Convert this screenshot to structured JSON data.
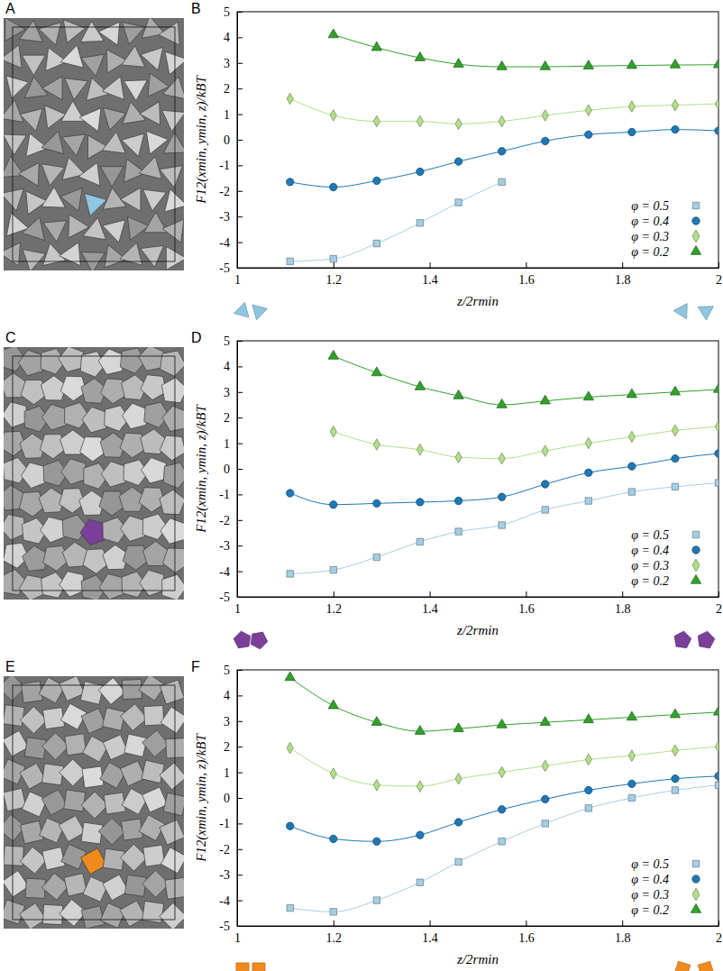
{
  "snapshots": [
    {
      "label": "A"
    },
    {
      "label": "C"
    },
    {
      "label": "E"
    }
  ],
  "chart_data": [
    {
      "type": "line",
      "title": "B",
      "x_label": "z/2rmin",
      "y_label": "F12(xmin, ymin, z)/kBT",
      "x": [
        1.11,
        1.2,
        1.29,
        1.38,
        1.46,
        1.55,
        1.64,
        1.73,
        1.82,
        1.91,
        2.0
      ],
      "xlim": [
        1,
        2
      ],
      "xticks": [
        1,
        1.2,
        1.4,
        1.6,
        1.8,
        2
      ],
      "ylim": [
        -5,
        5
      ],
      "yticks": [
        -5,
        -4,
        -3,
        -2,
        -1,
        0,
        1,
        2,
        3,
        4,
        5
      ],
      "legend": "lower right",
      "series": [
        {
          "name": "φ = 0.5",
          "color": "#a6cee3",
          "marker": "square",
          "values": [
            -4.75,
            -4.65,
            -4.05,
            -3.25,
            -2.45,
            -1.65,
            null,
            null,
            null,
            null,
            null
          ]
        },
        {
          "name": "φ = 0.4",
          "color": "#1f78b4",
          "marker": "circle",
          "values": [
            -1.65,
            -1.85,
            -1.6,
            -1.25,
            -0.85,
            -0.45,
            -0.05,
            0.2,
            0.3,
            0.4,
            0.35
          ]
        },
        {
          "name": "φ = 0.3",
          "color": "#b2df8a",
          "marker": "diamond",
          "values": [
            1.6,
            0.95,
            0.72,
            0.72,
            0.62,
            0.72,
            0.95,
            1.15,
            1.3,
            1.35,
            1.4
          ]
        },
        {
          "name": "φ = 0.2",
          "color": "#33a02c",
          "marker": "triangle",
          "values": [
            null,
            4.1,
            3.6,
            3.2,
            2.95,
            2.85,
            2.85,
            2.88,
            2.9,
            2.92,
            2.93
          ]
        }
      ]
    },
    {
      "type": "line",
      "title": "D",
      "x_label": "z/2rmin",
      "y_label": "F12(xmin, ymin, z)/kBT",
      "x": [
        1.11,
        1.2,
        1.29,
        1.38,
        1.46,
        1.55,
        1.64,
        1.73,
        1.82,
        1.91,
        2.0
      ],
      "xlim": [
        1,
        2
      ],
      "xticks": [
        1,
        1.2,
        1.4,
        1.6,
        1.8,
        2
      ],
      "ylim": [
        -5,
        5
      ],
      "yticks": [
        -5,
        -4,
        -3,
        -2,
        -1,
        0,
        1,
        2,
        3,
        4,
        5
      ],
      "legend": "lower right",
      "series": [
        {
          "name": "φ = 0.5",
          "color": "#a6cee3",
          "marker": "square",
          "values": [
            -4.1,
            -3.95,
            -3.45,
            -2.85,
            -2.45,
            -2.2,
            -1.6,
            -1.25,
            -0.9,
            -0.7,
            -0.55
          ]
        },
        {
          "name": "φ = 0.4",
          "color": "#1f78b4",
          "marker": "circle",
          "values": [
            -0.95,
            -1.4,
            -1.35,
            -1.3,
            -1.25,
            -1.1,
            -0.6,
            -0.15,
            0.1,
            0.4,
            0.6
          ]
        },
        {
          "name": "φ = 0.3",
          "color": "#b2df8a",
          "marker": "diamond",
          "values": [
            null,
            1.45,
            0.95,
            0.75,
            0.45,
            0.4,
            0.7,
            1.0,
            1.25,
            1.5,
            1.65
          ]
        },
        {
          "name": "φ = 0.2",
          "color": "#33a02c",
          "marker": "triangle",
          "values": [
            null,
            4.4,
            3.75,
            3.2,
            2.85,
            2.5,
            2.65,
            2.8,
            2.9,
            3.0,
            3.1
          ]
        }
      ]
    },
    {
      "type": "line",
      "title": "F",
      "x_label": "z/2rmin",
      "y_label": "F12(xmin, ymin, z)/kBT",
      "x": [
        1.11,
        1.2,
        1.29,
        1.38,
        1.46,
        1.55,
        1.64,
        1.73,
        1.82,
        1.91,
        2.0
      ],
      "xlim": [
        1,
        2
      ],
      "xticks": [
        1,
        1.2,
        1.4,
        1.6,
        1.8,
        2
      ],
      "ylim": [
        -5,
        5
      ],
      "yticks": [
        -5,
        -4,
        -3,
        -2,
        -1,
        0,
        1,
        2,
        3,
        4,
        5
      ],
      "legend": "lower right",
      "series": [
        {
          "name": "φ = 0.5",
          "color": "#a6cee3",
          "marker": "square",
          "values": [
            -4.3,
            -4.45,
            -4.0,
            -3.3,
            -2.5,
            -1.7,
            -1.0,
            -0.4,
            0.0,
            0.3,
            0.5
          ]
        },
        {
          "name": "φ = 0.4",
          "color": "#1f78b4",
          "marker": "circle",
          "values": [
            -1.1,
            -1.6,
            -1.7,
            -1.45,
            -0.95,
            -0.45,
            -0.05,
            0.3,
            0.55,
            0.75,
            0.85
          ]
        },
        {
          "name": "φ = 0.3",
          "color": "#b2df8a",
          "marker": "diamond",
          "values": [
            1.95,
            0.95,
            0.5,
            0.45,
            0.75,
            1.0,
            1.25,
            1.5,
            1.65,
            1.85,
            2.0
          ]
        },
        {
          "name": "φ = 0.2",
          "color": "#33a02c",
          "marker": "triangle",
          "values": [
            4.7,
            3.6,
            2.95,
            2.6,
            2.7,
            2.85,
            2.95,
            3.05,
            3.15,
            3.25,
            3.35
          ]
        }
      ]
    }
  ]
}
